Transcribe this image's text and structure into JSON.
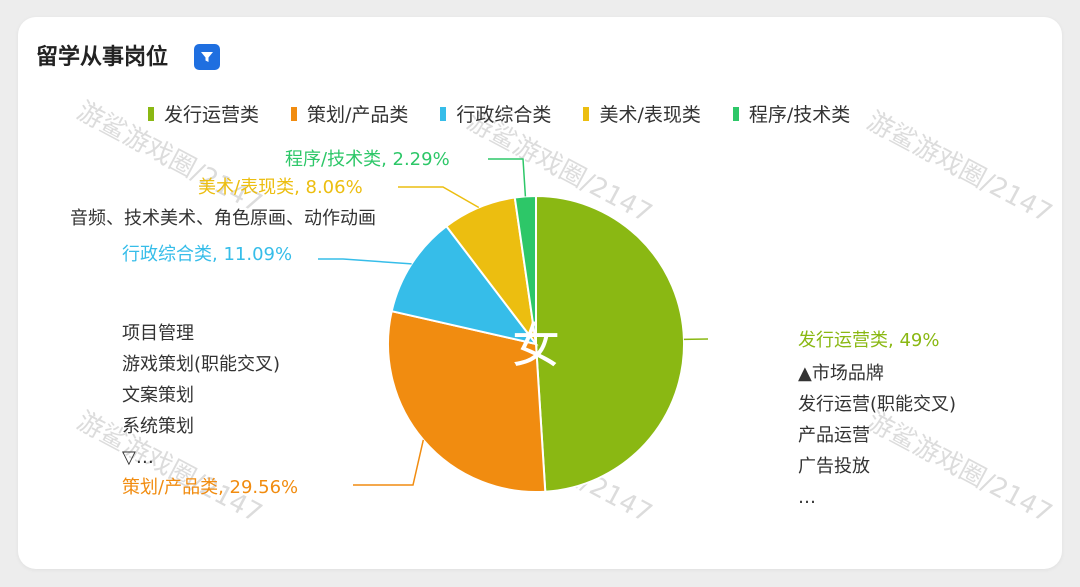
{
  "card": {
    "title": "留学从事岗位",
    "filter_icon": "filter-icon"
  },
  "watermark": "游鲨游戏圈/2147",
  "center_glyph": "女",
  "chart_data": {
    "type": "pie",
    "title": "留学从事岗位",
    "legend_position": "top",
    "slices": [
      {
        "name": "发行运营类",
        "value": 49,
        "label": "发行运营类, 49%",
        "color": "#8ab813",
        "notes": [
          "▲市场品牌",
          "发行运营(职能交叉)",
          "产品运营",
          "广告投放",
          "…"
        ]
      },
      {
        "name": "策划/产品类",
        "value": 29.56,
        "label": "策划/产品类, 29.56%",
        "color": "#f18c10",
        "notes": [
          "项目管理",
          "游戏策划(职能交叉)",
          "文案策划",
          "系统策划",
          "▽…"
        ]
      },
      {
        "name": "行政综合类",
        "value": 11.09,
        "label": "行政综合类, 11.09%",
        "color": "#36bde9",
        "notes": []
      },
      {
        "name": "美术/表现类",
        "value": 8.06,
        "label": "美术/表现类, 8.06%",
        "color": "#ecbe10",
        "notes": [
          "音频、技术美术、角色原画、动作动画"
        ]
      },
      {
        "name": "程序/技术类",
        "value": 2.29,
        "label": "程序/技术类, 2.29%",
        "color": "#2dc768",
        "notes": []
      }
    ]
  }
}
